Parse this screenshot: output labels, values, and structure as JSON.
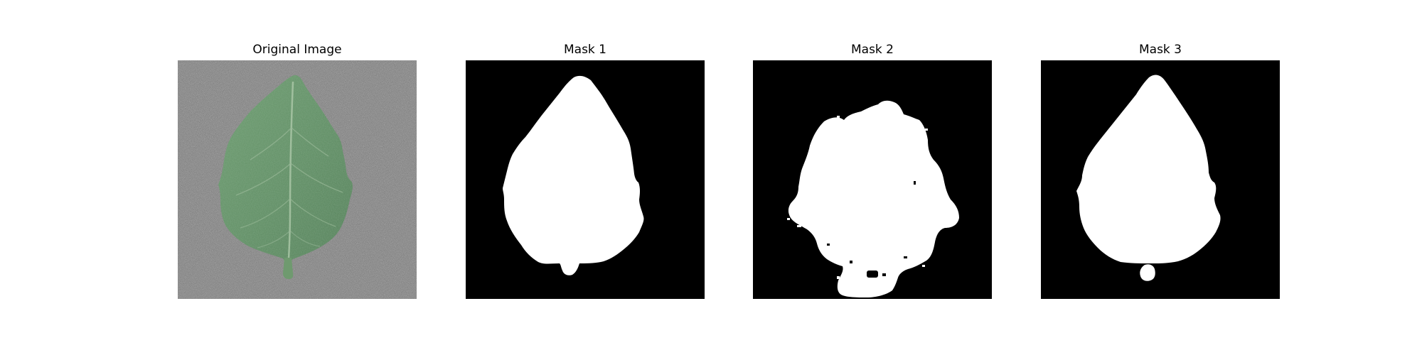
{
  "panels": [
    {
      "title": "Original Image",
      "content": "leaf-photo"
    },
    {
      "title": "Mask 1",
      "content": "binary-mask"
    },
    {
      "title": "Mask 2",
      "content": "binary-mask"
    },
    {
      "title": "Mask 3",
      "content": "binary-mask"
    }
  ],
  "colors": {
    "background": "#ffffff",
    "mask_background": "#000000",
    "mask_foreground": "#ffffff",
    "leaf": "#5f8a63",
    "leaf_vein": "#a9c6a6",
    "gray_surface": "#707070"
  }
}
